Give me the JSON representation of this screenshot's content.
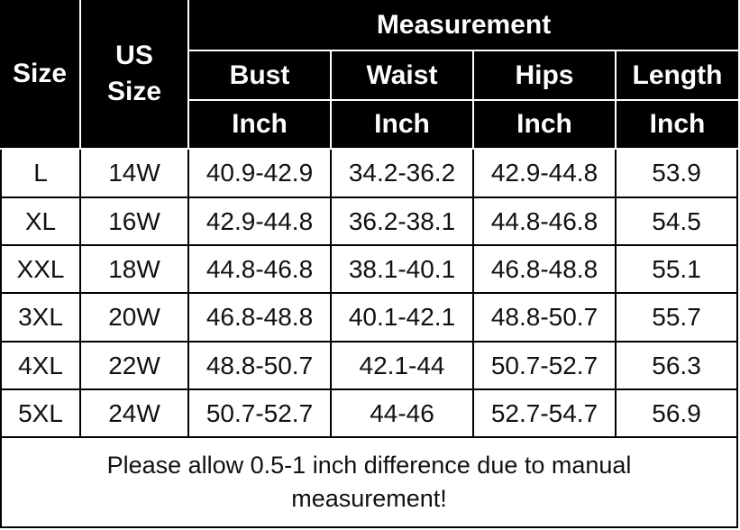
{
  "header": {
    "size": "Size",
    "us_size": "US Size",
    "measurement": "Measurement",
    "columns": [
      "Bust",
      "Waist",
      "Hips",
      "Length"
    ],
    "units": [
      "Inch",
      "Inch",
      "Inch",
      "Inch"
    ]
  },
  "table": {
    "rows": [
      [
        "L",
        "14W",
        "40.9-42.9",
        "34.2-36.2",
        "42.9-44.8",
        "53.9"
      ],
      [
        "XL",
        "16W",
        "42.9-44.8",
        "36.2-38.1",
        "44.8-46.8",
        "54.5"
      ],
      [
        "XXL",
        "18W",
        "44.8-46.8",
        "38.1-40.1",
        "46.8-48.8",
        "55.1"
      ],
      [
        "3XL",
        "20W",
        "46.8-48.8",
        "40.1-42.1",
        "48.8-50.7",
        "55.7"
      ],
      [
        "4XL",
        "22W",
        "48.8-50.7",
        "42.1-44",
        "50.7-52.7",
        "56.3"
      ],
      [
        "5XL",
        "24W",
        "50.7-52.7",
        "44-46",
        "52.7-54.7",
        "56.9"
      ]
    ]
  },
  "note": "Please allow 0.5-1 inch difference due to manual measurement!"
}
